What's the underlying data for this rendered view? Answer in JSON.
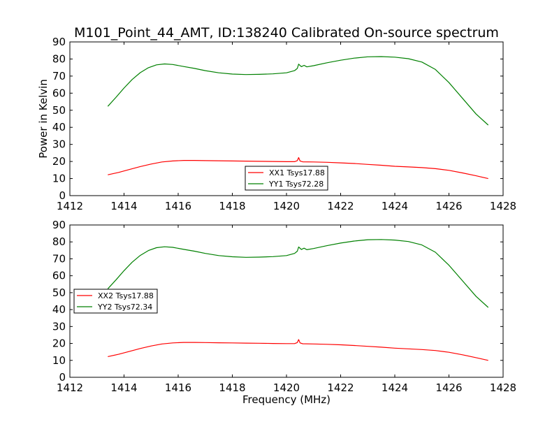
{
  "figure": {
    "title": "M101_Point_44_AMT, ID:138240 Calibrated On-source spectrum",
    "ylabel": "Power in Kelvin",
    "xlabel": "Frequency (MHz)"
  },
  "colors": {
    "xx": "#ff0000",
    "yy": "#008000",
    "axis": "#000000"
  },
  "chart_data": [
    {
      "type": "line",
      "xlabel": "",
      "ylabel": "Power in Kelvin",
      "xlim": [
        1412,
        1428
      ],
      "ylim": [
        0,
        90
      ],
      "xticks": [
        "1412",
        "1414",
        "1416",
        "1418",
        "1420",
        "1422",
        "1424",
        "1426",
        "1428"
      ],
      "yticks": [
        "0",
        "10",
        "20",
        "30",
        "40",
        "50",
        "60",
        "70",
        "80",
        "90"
      ],
      "legend_position": "lower-center",
      "series": [
        {
          "name": "XX1 Tsys17.88",
          "color": "#ff0000",
          "points": [
            [
              1413.4,
              12.2
            ],
            [
              1413.8,
              13.6
            ],
            [
              1414.2,
              15.3
            ],
            [
              1414.6,
              17.0
            ],
            [
              1415.0,
              18.5
            ],
            [
              1415.4,
              19.7
            ],
            [
              1415.8,
              20.3
            ],
            [
              1416.2,
              20.6
            ],
            [
              1416.6,
              20.6
            ],
            [
              1417.0,
              20.5
            ],
            [
              1417.5,
              20.4
            ],
            [
              1418.0,
              20.3
            ],
            [
              1418.5,
              20.2
            ],
            [
              1419.0,
              20.1
            ],
            [
              1419.5,
              20.0
            ],
            [
              1420.0,
              19.9
            ],
            [
              1420.3,
              19.9
            ],
            [
              1420.4,
              20.5
            ],
            [
              1420.45,
              22.3
            ],
            [
              1420.5,
              20.3
            ],
            [
              1420.6,
              19.8
            ],
            [
              1421.0,
              19.7
            ],
            [
              1421.5,
              19.5
            ],
            [
              1422.0,
              19.2
            ],
            [
              1422.5,
              18.8
            ],
            [
              1423.0,
              18.3
            ],
            [
              1423.5,
              17.8
            ],
            [
              1424.0,
              17.2
            ],
            [
              1424.5,
              16.8
            ],
            [
              1425.0,
              16.4
            ],
            [
              1425.5,
              15.8
            ],
            [
              1426.0,
              14.8
            ],
            [
              1426.5,
              13.3
            ],
            [
              1427.0,
              11.6
            ],
            [
              1427.45,
              10.0
            ]
          ]
        },
        {
          "name": "YY1 Tsys72.28",
          "color": "#008000",
          "points": [
            [
              1413.4,
              52.3
            ],
            [
              1413.7,
              57.5
            ],
            [
              1414.0,
              63.0
            ],
            [
              1414.3,
              68.0
            ],
            [
              1414.6,
              72.0
            ],
            [
              1414.9,
              74.9
            ],
            [
              1415.2,
              76.6
            ],
            [
              1415.5,
              77.1
            ],
            [
              1415.8,
              76.8
            ],
            [
              1416.2,
              75.6
            ],
            [
              1416.6,
              74.5
            ],
            [
              1417.0,
              73.2
            ],
            [
              1417.5,
              71.9
            ],
            [
              1418.0,
              71.2
            ],
            [
              1418.5,
              70.9
            ],
            [
              1419.0,
              71.0
            ],
            [
              1419.5,
              71.3
            ],
            [
              1420.0,
              71.9
            ],
            [
              1420.3,
              73.2
            ],
            [
              1420.4,
              74.5
            ],
            [
              1420.45,
              77.0
            ],
            [
              1420.55,
              75.5
            ],
            [
              1420.65,
              76.3
            ],
            [
              1420.75,
              75.4
            ],
            [
              1421.0,
              76.1
            ],
            [
              1421.5,
              77.8
            ],
            [
              1422.0,
              79.3
            ],
            [
              1422.5,
              80.5
            ],
            [
              1423.0,
              81.3
            ],
            [
              1423.5,
              81.4
            ],
            [
              1424.0,
              81.1
            ],
            [
              1424.5,
              80.2
            ],
            [
              1425.0,
              78.2
            ],
            [
              1425.5,
              73.9
            ],
            [
              1426.0,
              66.2
            ],
            [
              1426.5,
              57.0
            ],
            [
              1427.0,
              47.8
            ],
            [
              1427.45,
              41.3
            ]
          ]
        }
      ]
    },
    {
      "type": "line",
      "xlabel": "Frequency (MHz)",
      "ylabel": "",
      "xlim": [
        1412,
        1428
      ],
      "ylim": [
        0,
        90
      ],
      "xticks": [
        "1412",
        "1414",
        "1416",
        "1418",
        "1420",
        "1422",
        "1424",
        "1426",
        "1428"
      ],
      "yticks": [
        "0",
        "10",
        "20",
        "30",
        "40",
        "50",
        "60",
        "70",
        "80",
        "90"
      ],
      "legend_position": "center-left",
      "series": [
        {
          "name": "XX2 Tsys17.88",
          "color": "#ff0000",
          "points": [
            [
              1413.4,
              12.2
            ],
            [
              1413.8,
              13.6
            ],
            [
              1414.2,
              15.3
            ],
            [
              1414.6,
              17.0
            ],
            [
              1415.0,
              18.5
            ],
            [
              1415.4,
              19.7
            ],
            [
              1415.8,
              20.3
            ],
            [
              1416.2,
              20.6
            ],
            [
              1416.6,
              20.6
            ],
            [
              1417.0,
              20.5
            ],
            [
              1417.5,
              20.4
            ],
            [
              1418.0,
              20.3
            ],
            [
              1418.5,
              20.2
            ],
            [
              1419.0,
              20.1
            ],
            [
              1419.5,
              20.0
            ],
            [
              1420.0,
              19.9
            ],
            [
              1420.3,
              19.9
            ],
            [
              1420.4,
              20.5
            ],
            [
              1420.45,
              22.3
            ],
            [
              1420.5,
              20.3
            ],
            [
              1420.6,
              19.8
            ],
            [
              1421.0,
              19.7
            ],
            [
              1421.5,
              19.5
            ],
            [
              1422.0,
              19.2
            ],
            [
              1422.5,
              18.8
            ],
            [
              1423.0,
              18.3
            ],
            [
              1423.5,
              17.8
            ],
            [
              1424.0,
              17.2
            ],
            [
              1424.5,
              16.8
            ],
            [
              1425.0,
              16.4
            ],
            [
              1425.5,
              15.8
            ],
            [
              1426.0,
              14.8
            ],
            [
              1426.5,
              13.3
            ],
            [
              1427.0,
              11.6
            ],
            [
              1427.45,
              10.0
            ]
          ]
        },
        {
          "name": "YY2 Tsys72.34",
          "color": "#008000",
          "points": [
            [
              1413.4,
              52.3
            ],
            [
              1413.7,
              57.5
            ],
            [
              1414.0,
              63.0
            ],
            [
              1414.3,
              68.0
            ],
            [
              1414.6,
              72.0
            ],
            [
              1414.9,
              74.9
            ],
            [
              1415.2,
              76.6
            ],
            [
              1415.5,
              77.1
            ],
            [
              1415.8,
              76.8
            ],
            [
              1416.2,
              75.6
            ],
            [
              1416.6,
              74.5
            ],
            [
              1417.0,
              73.2
            ],
            [
              1417.5,
              71.9
            ],
            [
              1418.0,
              71.2
            ],
            [
              1418.5,
              70.9
            ],
            [
              1419.0,
              71.0
            ],
            [
              1419.5,
              71.3
            ],
            [
              1420.0,
              71.9
            ],
            [
              1420.3,
              73.2
            ],
            [
              1420.4,
              74.5
            ],
            [
              1420.45,
              77.0
            ],
            [
              1420.55,
              75.5
            ],
            [
              1420.65,
              76.3
            ],
            [
              1420.75,
              75.4
            ],
            [
              1421.0,
              76.1
            ],
            [
              1421.5,
              77.8
            ],
            [
              1422.0,
              79.3
            ],
            [
              1422.5,
              80.5
            ],
            [
              1423.0,
              81.3
            ],
            [
              1423.5,
              81.4
            ],
            [
              1424.0,
              81.1
            ],
            [
              1424.5,
              80.2
            ],
            [
              1425.0,
              78.2
            ],
            [
              1425.5,
              73.9
            ],
            [
              1426.0,
              66.2
            ],
            [
              1426.5,
              57.0
            ],
            [
              1427.0,
              47.8
            ],
            [
              1427.45,
              41.3
            ]
          ]
        }
      ]
    }
  ]
}
